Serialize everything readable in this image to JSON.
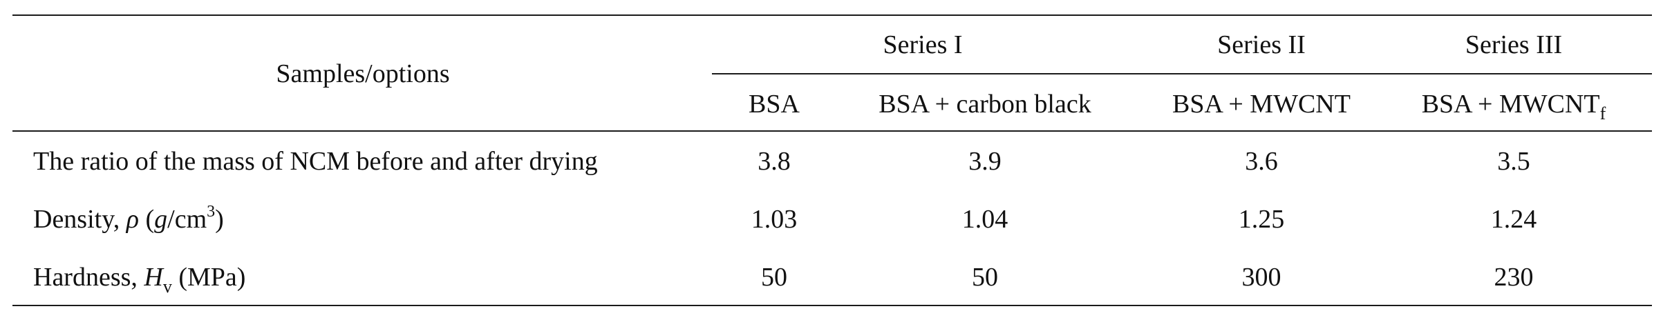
{
  "table": {
    "header": {
      "row_label": "Samples/options",
      "groups": [
        {
          "label": "Series I"
        },
        {
          "label": "Series II"
        },
        {
          "label": "Series III"
        }
      ],
      "columns": [
        {
          "label": "BSA"
        },
        {
          "label": "BSA + carbon black"
        },
        {
          "label": "BSA + MWCNT"
        },
        {
          "label": "BSA + MWCNT",
          "subscript": "f"
        }
      ]
    },
    "rows": [
      {
        "label": "The ratio of the mass of NCM before and after drying",
        "values": [
          "3.8",
          "3.9",
          "3.6",
          "3.5"
        ]
      },
      {
        "label_prefix": "Density, ",
        "label_symbol": "ρ",
        "label_unit_open": " (",
        "label_unit_g": "g",
        "label_unit_mid": "/cm",
        "label_unit_sup": "3",
        "label_unit_close": ")",
        "values": [
          "1.03",
          "1.04",
          "1.25",
          "1.24"
        ]
      },
      {
        "label_prefix": "Hardness, ",
        "label_symbol": "H",
        "label_symbol_sub": "v",
        "label_suffix": " (MPa)",
        "values": [
          "50",
          "50",
          "300",
          "230"
        ]
      }
    ]
  }
}
